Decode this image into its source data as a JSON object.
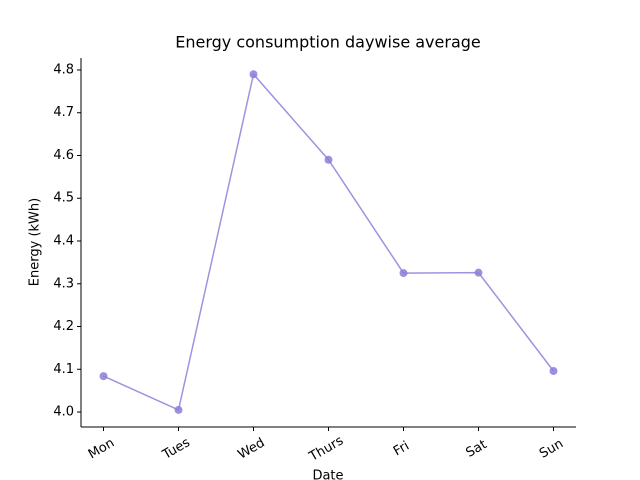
{
  "chart_data": {
    "type": "line",
    "title": "Energy consumption daywise average",
    "x_label": "Date",
    "y_label": "Energy (kWh)",
    "categories": [
      "Mon",
      "Tues",
      "Wed",
      "Thurs",
      "Fri",
      "Sat",
      "Sun"
    ],
    "values": [
      4.084,
      4.005,
      4.79,
      4.59,
      4.325,
      4.326,
      4.096
    ],
    "color": "#9d94e0",
    "marker_color": "#8a7fd8",
    "ylim": [
      3.965,
      4.828
    ],
    "yticks": [
      {
        "value": 4,
        "label": "4.0"
      },
      4.1,
      4.2,
      4.3,
      4.4,
      4.5,
      4.6,
      4.7,
      4.8
    ],
    "grid": false
  }
}
